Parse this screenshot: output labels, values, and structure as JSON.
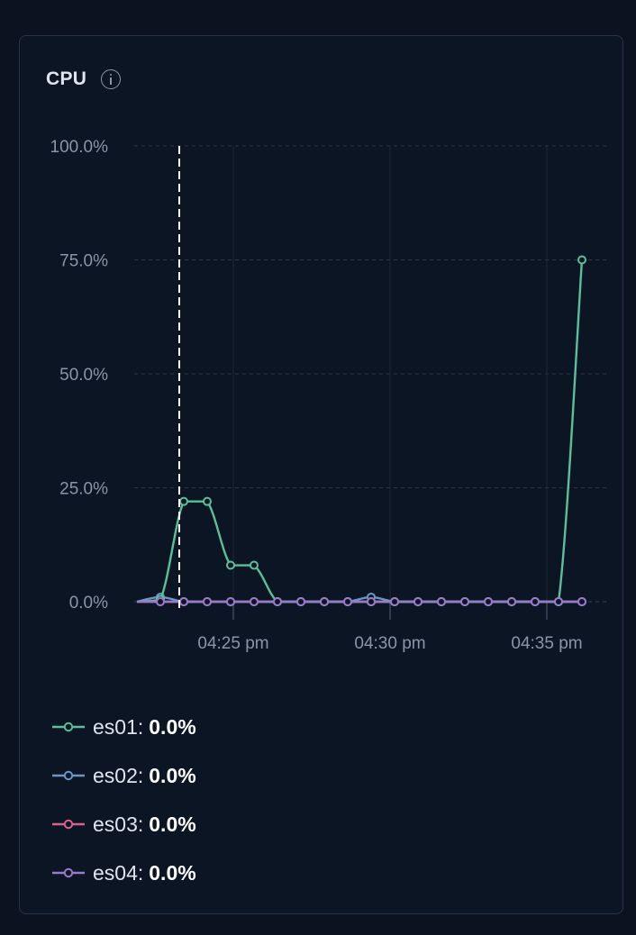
{
  "panel": {
    "title": "CPU",
    "info_icon": "info-icon"
  },
  "colors": {
    "es01": "#5bbf9a",
    "es02": "#6a97c6",
    "es03": "#d9648a",
    "es04": "#9a79c9",
    "grid": "#2b3646",
    "axis_text": "#8a95a8",
    "cursor": "#ffffff"
  },
  "chart_data": {
    "type": "line",
    "title": "CPU",
    "xlabel": "",
    "ylabel": "",
    "ylim": [
      0,
      100
    ],
    "y_ticks": [
      "0.0%",
      "25.0%",
      "50.0%",
      "75.0%",
      "100.0%"
    ],
    "x_ticks": [
      "04:25 pm",
      "04:30 pm",
      "04:35 pm"
    ],
    "x": [
      "04:22 pm",
      "04:22:45 pm",
      "04:23:30 pm",
      "04:24:15 pm",
      "04:25 pm",
      "04:25:45 pm",
      "04:26:30 pm",
      "04:27:15 pm",
      "04:28 pm",
      "04:28:45 pm",
      "04:29:30 pm",
      "04:30:15 pm",
      "04:31 pm",
      "04:31:45 pm",
      "04:32:30 pm",
      "04:33:15 pm",
      "04:34 pm",
      "04:34:45 pm",
      "04:35:30 pm",
      "04:36:15 pm"
    ],
    "cursor_x": "04:23:15 pm",
    "series": [
      {
        "name": "es01",
        "values": [
          0,
          0.5,
          22,
          22,
          8,
          8,
          0,
          0,
          0,
          0,
          0,
          0,
          0,
          0,
          0,
          0,
          0,
          0,
          0,
          75
        ]
      },
      {
        "name": "es02",
        "values": [
          0,
          1,
          0,
          0,
          0,
          0,
          0,
          0,
          0,
          0,
          1,
          0,
          0,
          0,
          0,
          0,
          0,
          0,
          0,
          0
        ]
      },
      {
        "name": "es03",
        "values": [
          0,
          0,
          0,
          0,
          0,
          0,
          0,
          0,
          0,
          0,
          0,
          0,
          0,
          0,
          0,
          0,
          0,
          0,
          0,
          0
        ]
      },
      {
        "name": "es04",
        "values": [
          0,
          0,
          0,
          0,
          0,
          0,
          0,
          0,
          0,
          0,
          0,
          0,
          0,
          0,
          0,
          0,
          0,
          0,
          0,
          0
        ]
      }
    ],
    "series_start_index": [
      1,
      1,
      1,
      1
    ],
    "legend_position": "bottom"
  },
  "legend": [
    {
      "name": "es01:",
      "value": "0.0%"
    },
    {
      "name": "es02:",
      "value": "0.0%"
    },
    {
      "name": "es03:",
      "value": "0.0%"
    },
    {
      "name": "es04:",
      "value": "0.0%"
    }
  ]
}
